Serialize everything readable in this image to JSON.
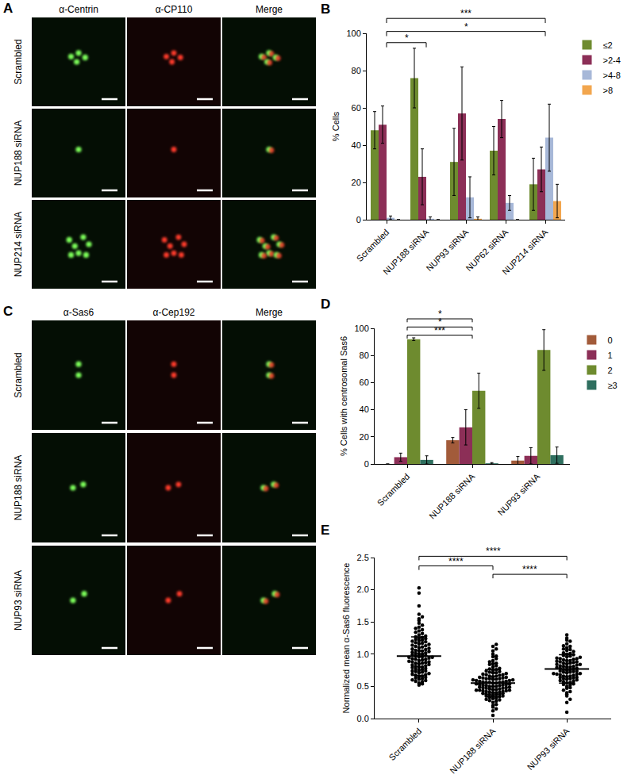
{
  "panels": [
    {
      "letter": "A",
      "type": "image",
      "columns": [
        "α-Centrin",
        "α-CP110",
        "Merge"
      ],
      "rows": [
        "Scrambled",
        "NUP188 siRNA",
        "NUP214 siRNA"
      ]
    },
    {
      "letter": "C",
      "type": "image",
      "columns": [
        "α-Sas6",
        "α-Cep192",
        "Merge"
      ],
      "rows": [
        "Scrambled",
        "NUP188 siRNA",
        "NUP93 siRNA"
      ]
    }
  ],
  "chart_data": [
    {
      "panel": "B",
      "type": "bar",
      "y_label": "% Cells",
      "categories": [
        "Scrambled",
        "NUP188 siRNA",
        "NUP93 siRNA",
        "NUP62 siRNA",
        "NUP214 siRNA"
      ],
      "series": [
        {
          "name": "≤2",
          "color": "#6e8b2f",
          "values": [
            48,
            76,
            31,
            37,
            19
          ],
          "errors": [
            10,
            16,
            18,
            13,
            14
          ]
        },
        {
          "name": ">2-4",
          "color": "#8c2f57",
          "values": [
            51,
            23,
            57,
            54,
            27
          ],
          "errors": [
            10,
            15,
            25,
            10,
            12
          ]
        },
        {
          "name": ">4-8",
          "color": "#a7b8d8",
          "values": [
            1,
            0.5,
            12,
            9,
            44
          ],
          "errors": [
            1,
            1,
            11,
            4,
            18
          ]
        },
        {
          "name": ">8",
          "color": "#f2a64e",
          "values": [
            0,
            0,
            0.5,
            0,
            10
          ],
          "errors": [
            0,
            0,
            1,
            0,
            9
          ]
        }
      ],
      "significance": [
        {
          "from": "Scrambled",
          "to": "NUP214 siRNA",
          "y": 108,
          "label": "***"
        },
        {
          "from": "Scrambled",
          "to": "NUP214 siRNA",
          "y": 101,
          "label": "*"
        },
        {
          "from": "Scrambled",
          "to": "NUP188 siRNA",
          "y": 95,
          "label": "*"
        }
      ],
      "ylim": [
        0,
        100
      ],
      "yticks": [
        0,
        20,
        40,
        60,
        80,
        100
      ],
      "grid": false,
      "legend": "top right"
    },
    {
      "panel": "D",
      "type": "bar",
      "y_label": "% Cells with centrosomal Sas6",
      "categories": [
        "Scrambled",
        "NUP188 siRNA",
        "NUP93 siRNA"
      ],
      "series": [
        {
          "name": "0",
          "color": "#a25b3a",
          "values": [
            0,
            17.5,
            2.5
          ],
          "errors": [
            0,
            2,
            3
          ]
        },
        {
          "name": "1",
          "color": "#8c2f57",
          "values": [
            5,
            27,
            6
          ],
          "errors": [
            3,
            13,
            6
          ]
        },
        {
          "name": "2",
          "color": "#6e8b2f",
          "values": [
            92,
            54,
            84
          ],
          "errors": [
            1,
            13,
            15
          ]
        },
        {
          "name": "≥3",
          "color": "#2f6f5f",
          "values": [
            3,
            0.5,
            6.5
          ],
          "errors": [
            3,
            0.5,
            6
          ]
        }
      ],
      "significance": [
        {
          "from": "Scrambled",
          "to": "NUP188 siRNA",
          "y": 107,
          "label": "*"
        },
        {
          "from": "Scrambled",
          "to": "NUP188 siRNA",
          "y": 101,
          "label": "*"
        },
        {
          "from": "Scrambled",
          "to": "NUP188 siRNA",
          "y": 95,
          "label": "***"
        }
      ],
      "ylim": [
        0,
        100
      ],
      "yticks": [
        0,
        20,
        40,
        60,
        80,
        100
      ],
      "grid": false,
      "legend": "top right"
    },
    {
      "panel": "E",
      "type": "scatter",
      "marker": "circle",
      "color": "#000000",
      "y_label": "Normalized mean α-Sas6 fluorescence",
      "categories": [
        "Scrambled",
        "NUP188 siRNA",
        "NUP93 siRNA"
      ],
      "values": [
        [
          0.52,
          0.55,
          0.57,
          0.58,
          0.6,
          0.61,
          0.62,
          0.63,
          0.64,
          0.65,
          0.66,
          0.67,
          0.68,
          0.69,
          0.7,
          0.71,
          0.72,
          0.73,
          0.74,
          0.75,
          0.76,
          0.77,
          0.78,
          0.79,
          0.8,
          0.8,
          0.81,
          0.82,
          0.83,
          0.84,
          0.85,
          0.86,
          0.87,
          0.88,
          0.88,
          0.89,
          0.9,
          0.91,
          0.92,
          0.92,
          0.93,
          0.94,
          0.95,
          0.96,
          0.96,
          0.97,
          0.98,
          0.99,
          1.0,
          1.0,
          1.01,
          1.02,
          1.03,
          1.04,
          1.05,
          1.06,
          1.07,
          1.08,
          1.09,
          1.1,
          1.11,
          1.12,
          1.13,
          1.14,
          1.15,
          1.16,
          1.17,
          1.18,
          1.19,
          1.2,
          1.21,
          1.22,
          1.23,
          1.24,
          1.25,
          1.26,
          1.27,
          1.28,
          1.3,
          1.32,
          1.34,
          1.36,
          1.38,
          1.4,
          1.42,
          1.45,
          1.48,
          1.52,
          1.55,
          1.58,
          0.54,
          0.59,
          0.74,
          0.86,
          0.95,
          1.05,
          1.62,
          1.75,
          1.95,
          2.03
        ],
        [
          0.05,
          0.12,
          0.18,
          0.22,
          0.25,
          0.27,
          0.29,
          0.3,
          0.31,
          0.32,
          0.33,
          0.34,
          0.35,
          0.36,
          0.37,
          0.37,
          0.38,
          0.39,
          0.4,
          0.4,
          0.41,
          0.42,
          0.42,
          0.43,
          0.44,
          0.44,
          0.45,
          0.46,
          0.46,
          0.47,
          0.48,
          0.48,
          0.49,
          0.5,
          0.5,
          0.51,
          0.52,
          0.52,
          0.53,
          0.54,
          0.54,
          0.55,
          0.56,
          0.56,
          0.57,
          0.58,
          0.58,
          0.59,
          0.6,
          0.6,
          0.61,
          0.62,
          0.62,
          0.63,
          0.64,
          0.64,
          0.65,
          0.66,
          0.67,
          0.68,
          0.69,
          0.7,
          0.71,
          0.72,
          0.73,
          0.74,
          0.75,
          0.76,
          0.78,
          0.8,
          0.82,
          0.84,
          0.86,
          0.88,
          0.9,
          0.93,
          0.96,
          1.0,
          1.05,
          1.12,
          0.28,
          0.35,
          0.41,
          0.45,
          0.49,
          0.53,
          0.57,
          0.61,
          0.66,
          0.71,
          0.15,
          0.2,
          0.38,
          0.43,
          0.47,
          0.51,
          0.55,
          0.59,
          0.63,
          0.68,
          0.39,
          0.44,
          0.5,
          0.56,
          0.62,
          0.77,
          0.85,
          0.97,
          1.08,
          1.15
        ],
        [
          0.1,
          0.25,
          0.35,
          0.4,
          0.44,
          0.47,
          0.5,
          0.52,
          0.54,
          0.56,
          0.58,
          0.6,
          0.61,
          0.62,
          0.63,
          0.64,
          0.65,
          0.66,
          0.67,
          0.68,
          0.69,
          0.7,
          0.71,
          0.72,
          0.73,
          0.74,
          0.75,
          0.76,
          0.77,
          0.78,
          0.79,
          0.8,
          0.81,
          0.82,
          0.83,
          0.84,
          0.85,
          0.86,
          0.87,
          0.88,
          0.89,
          0.9,
          0.91,
          0.92,
          0.93,
          0.94,
          0.95,
          0.96,
          0.98,
          1.0,
          1.02,
          1.04,
          1.06,
          1.08,
          1.1,
          1.13,
          1.16,
          1.2,
          1.25,
          1.3,
          0.3,
          0.42,
          0.53,
          0.59,
          0.66,
          0.72,
          0.78,
          0.84,
          0.9,
          0.97,
          0.48,
          0.57,
          0.64,
          0.7,
          0.75,
          0.8,
          0.86,
          0.93,
          1.01,
          1.12,
          0.38,
          0.55,
          0.62,
          0.69,
          0.74,
          0.81,
          0.88,
          0.99,
          1.07,
          1.22
        ]
      ],
      "means": [
        0.97,
        0.55,
        0.77
      ],
      "sds": [
        0.3,
        0.21,
        0.22
      ],
      "significance": [
        {
          "from": "Scrambled",
          "to": "NUP93 siRNA",
          "y": 2.52,
          "label": "****"
        },
        {
          "from": "Scrambled",
          "to": "NUP188 siRNA",
          "y": 2.37,
          "label": "****"
        },
        {
          "from": "NUP188 siRNA",
          "to": "NUP93 siRNA",
          "y": 2.24,
          "label": "****"
        }
      ],
      "ylim": [
        0,
        2.5
      ],
      "yticks": [
        {
          "value": 0,
          "label": "0.0"
        },
        {
          "value": 0.5,
          "label": "0.5"
        },
        {
          "value": 1,
          "label": "1.0"
        },
        {
          "value": 1.5,
          "label": "1.5"
        },
        {
          "value": 2,
          "label": "2.0"
        },
        {
          "value": 2.5,
          "label": "2.5"
        }
      ],
      "grid": false
    }
  ]
}
